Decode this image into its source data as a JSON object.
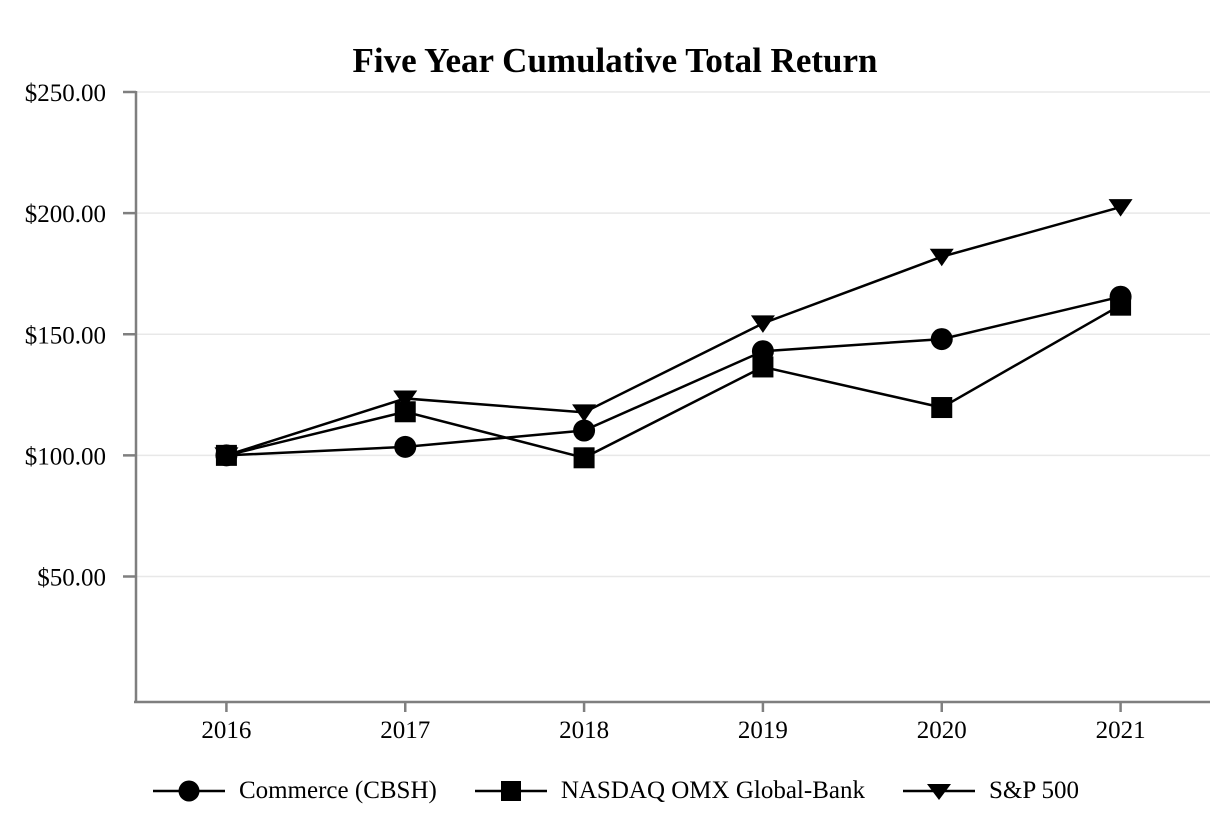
{
  "chart_data": {
    "type": "line",
    "title": "Five Year Cumulative Total Return",
    "categories": [
      "2016",
      "2017",
      "2018",
      "2019",
      "2020",
      "2021"
    ],
    "series": [
      {
        "name": "Commerce (CBSH)",
        "marker": "circle",
        "values": [
          100.0,
          103.5,
          110.25,
          143.0,
          148.0,
          165.5
        ]
      },
      {
        "name": "NASDAQ OMX Global-Bank",
        "marker": "square",
        "values": [
          100.0,
          118.0,
          99.0,
          136.5,
          119.75,
          162.0
        ]
      },
      {
        "name": "S&P 500",
        "marker": "triangle-down",
        "values": [
          100.0,
          123.5,
          117.75,
          154.5,
          182.0,
          202.5
        ]
      }
    ],
    "y_axis": {
      "tick_labels": [
        "$250.00",
        "$200.00",
        "$150.00",
        "$100.00",
        "$50.00"
      ],
      "tick_values": [
        250,
        200,
        150,
        100,
        50
      ],
      "range_top": 250,
      "format": "USD"
    },
    "x_axis": {
      "label": "",
      "tick_source": "categories"
    },
    "legend_position": "bottom-center",
    "grid": {
      "horizontal": true,
      "vertical": false
    },
    "colors": {
      "series": "#000000",
      "axis": "#7f7f7f",
      "gridline": "#e8e8e8",
      "background": "#ffffff",
      "text": "#000000"
    }
  }
}
